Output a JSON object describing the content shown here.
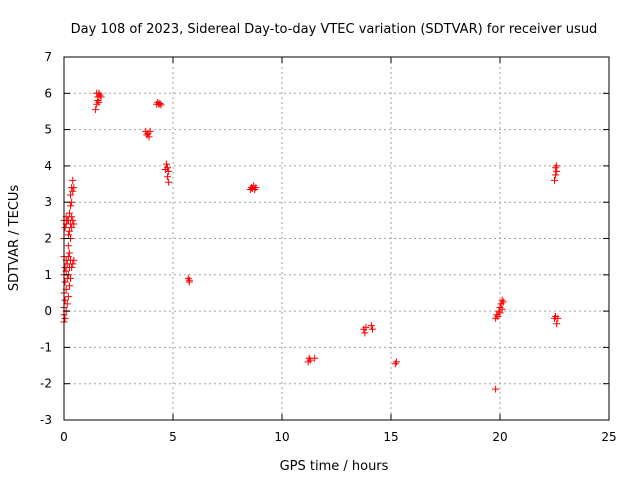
{
  "chart_data": {
    "type": "scatter",
    "title": "Day 108 of 2023, Sidereal Day-to-day VTEC variation (SDTVAR) for receiver usud",
    "xlabel": "GPS time / hours",
    "ylabel": "SDTVAR / TECUs",
    "xlim": [
      0,
      25
    ],
    "ylim": [
      -3,
      7
    ],
    "xticks": [
      0,
      5,
      10,
      15,
      20,
      25
    ],
    "yticks": [
      -3,
      -2,
      -1,
      0,
      1,
      2,
      3,
      4,
      5,
      6,
      7
    ],
    "xtick_labels": [
      "0",
      "5",
      "10",
      "15",
      "20",
      "25"
    ],
    "ytick_labels": [
      "-3",
      "-2",
      "-1",
      "0",
      "1",
      "2",
      "3",
      "4",
      "5",
      "6",
      "7"
    ],
    "grid": true,
    "marker": "+",
    "color": "#ff0000",
    "points": [
      {
        "x": 0.0,
        "y": -0.3
      },
      {
        "x": 0.0,
        "y": -0.1
      },
      {
        "x": 0.0,
        "y": 0.1
      },
      {
        "x": 0.0,
        "y": 0.5
      },
      {
        "x": 0.0,
        "y": 1.0
      },
      {
        "x": 0.0,
        "y": 1.5
      },
      {
        "x": 0.0,
        "y": 2.0
      },
      {
        "x": 0.0,
        "y": 2.5
      },
      {
        "x": 0.05,
        "y": -0.2
      },
      {
        "x": 0.05,
        "y": 0.3
      },
      {
        "x": 0.05,
        "y": 0.8
      },
      {
        "x": 0.05,
        "y": 1.2
      },
      {
        "x": 0.05,
        "y": 2.3
      },
      {
        "x": 0.1,
        "y": 0.0
      },
      {
        "x": 0.1,
        "y": 0.6
      },
      {
        "x": 0.1,
        "y": 1.1
      },
      {
        "x": 0.1,
        "y": 1.4
      },
      {
        "x": 0.1,
        "y": 2.4
      },
      {
        "x": 0.1,
        "y": 2.6
      },
      {
        "x": 0.15,
        "y": 0.2
      },
      {
        "x": 0.15,
        "y": 0.9
      },
      {
        "x": 0.15,
        "y": 1.3
      },
      {
        "x": 0.15,
        "y": 2.5
      },
      {
        "x": 0.2,
        "y": 0.4
      },
      {
        "x": 0.2,
        "y": 1.0
      },
      {
        "x": 0.2,
        "y": 1.5
      },
      {
        "x": 0.2,
        "y": 1.8
      },
      {
        "x": 0.2,
        "y": 2.1
      },
      {
        "x": 0.2,
        "y": 2.5
      },
      {
        "x": 0.25,
        "y": 0.7
      },
      {
        "x": 0.25,
        "y": 1.2
      },
      {
        "x": 0.25,
        "y": 1.6
      },
      {
        "x": 0.25,
        "y": 2.2
      },
      {
        "x": 0.25,
        "y": 2.7
      },
      {
        "x": 0.3,
        "y": 0.9
      },
      {
        "x": 0.3,
        "y": 1.4
      },
      {
        "x": 0.3,
        "y": 2.0
      },
      {
        "x": 0.3,
        "y": 2.4
      },
      {
        "x": 0.3,
        "y": 2.9
      },
      {
        "x": 0.3,
        "y": 3.2
      },
      {
        "x": 0.35,
        "y": 1.2
      },
      {
        "x": 0.35,
        "y": 2.3
      },
      {
        "x": 0.35,
        "y": 2.6
      },
      {
        "x": 0.35,
        "y": 3.0
      },
      {
        "x": 0.35,
        "y": 3.4
      },
      {
        "x": 0.4,
        "y": 1.3
      },
      {
        "x": 0.4,
        "y": 2.5
      },
      {
        "x": 0.4,
        "y": 3.3
      },
      {
        "x": 0.4,
        "y": 3.6
      },
      {
        "x": 0.45,
        "y": 1.4
      },
      {
        "x": 0.45,
        "y": 2.4
      },
      {
        "x": 0.45,
        "y": 3.4
      },
      {
        "x": 1.45,
        "y": 5.55
      },
      {
        "x": 1.5,
        "y": 5.7
      },
      {
        "x": 1.5,
        "y": 6.0
      },
      {
        "x": 1.55,
        "y": 5.8
      },
      {
        "x": 1.55,
        "y": 5.9
      },
      {
        "x": 1.6,
        "y": 5.75
      },
      {
        "x": 1.6,
        "y": 6.0
      },
      {
        "x": 1.65,
        "y": 5.95
      },
      {
        "x": 1.7,
        "y": 5.9
      },
      {
        "x": 3.75,
        "y": 4.95
      },
      {
        "x": 3.8,
        "y": 4.85
      },
      {
        "x": 3.85,
        "y": 4.9
      },
      {
        "x": 3.9,
        "y": 4.8
      },
      {
        "x": 3.95,
        "y": 4.95
      },
      {
        "x": 4.25,
        "y": 5.7
      },
      {
        "x": 4.3,
        "y": 5.75
      },
      {
        "x": 4.35,
        "y": 5.7
      },
      {
        "x": 4.4,
        "y": 5.72
      },
      {
        "x": 4.45,
        "y": 5.68
      },
      {
        "x": 4.65,
        "y": 3.9
      },
      {
        "x": 4.7,
        "y": 4.05
      },
      {
        "x": 4.75,
        "y": 3.95
      },
      {
        "x": 4.75,
        "y": 3.7
      },
      {
        "x": 4.8,
        "y": 3.85
      },
      {
        "x": 4.8,
        "y": 3.55
      },
      {
        "x": 5.7,
        "y": 0.9
      },
      {
        "x": 5.75,
        "y": 0.8
      },
      {
        "x": 5.75,
        "y": 0.85
      },
      {
        "x": 8.55,
        "y": 3.35
      },
      {
        "x": 8.6,
        "y": 3.4
      },
      {
        "x": 8.65,
        "y": 3.38
      },
      {
        "x": 8.7,
        "y": 3.45
      },
      {
        "x": 8.75,
        "y": 3.35
      },
      {
        "x": 8.8,
        "y": 3.4
      },
      {
        "x": 11.2,
        "y": -1.4
      },
      {
        "x": 11.25,
        "y": -1.3
      },
      {
        "x": 11.3,
        "y": -1.35
      },
      {
        "x": 11.5,
        "y": -1.3
      },
      {
        "x": 13.75,
        "y": -0.5
      },
      {
        "x": 13.8,
        "y": -0.6
      },
      {
        "x": 13.85,
        "y": -0.45
      },
      {
        "x": 14.1,
        "y": -0.4
      },
      {
        "x": 14.15,
        "y": -0.5
      },
      {
        "x": 15.2,
        "y": -1.45
      },
      {
        "x": 15.25,
        "y": -1.4
      },
      {
        "x": 19.8,
        "y": -2.15
      },
      {
        "x": 19.8,
        "y": -0.2
      },
      {
        "x": 19.85,
        "y": -0.1
      },
      {
        "x": 19.9,
        "y": -0.15
      },
      {
        "x": 19.95,
        "y": 0.0
      },
      {
        "x": 20.0,
        "y": -0.05
      },
      {
        "x": 20.0,
        "y": 0.1
      },
      {
        "x": 20.05,
        "y": 0.2
      },
      {
        "x": 20.1,
        "y": 0.3
      },
      {
        "x": 20.1,
        "y": 0.05
      },
      {
        "x": 20.15,
        "y": 0.25
      },
      {
        "x": 22.5,
        "y": 3.6
      },
      {
        "x": 22.55,
        "y": 3.75
      },
      {
        "x": 22.55,
        "y": 3.95
      },
      {
        "x": 22.6,
        "y": 3.85
      },
      {
        "x": 22.6,
        "y": 4.0
      },
      {
        "x": 22.5,
        "y": -0.2
      },
      {
        "x": 22.55,
        "y": -0.15
      },
      {
        "x": 22.6,
        "y": -0.35
      },
      {
        "x": 22.65,
        "y": -0.2
      }
    ]
  }
}
